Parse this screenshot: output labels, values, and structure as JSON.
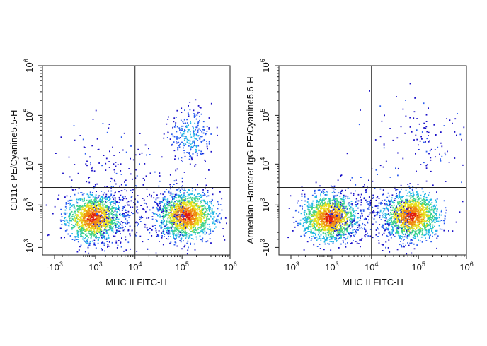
{
  "chart_data": [
    {
      "type": "scatter",
      "subtype": "flow-cytometry-density-plot",
      "xlabel": "MHC II FITC-H",
      "ylabel": "CD11c PE/Cyanine5.5-H",
      "x_scale": "biexponential",
      "y_scale": "biexponential",
      "xlim": [
        -1000,
        1000000
      ],
      "ylim": [
        -1000,
        1000000
      ],
      "x_ticks": [
        {
          "value": -1000,
          "base": "-10",
          "exp": "3"
        },
        {
          "value": 1000,
          "base": "10",
          "exp": "3"
        },
        {
          "value": 10000,
          "base": "10",
          "exp": "4"
        },
        {
          "value": 100000,
          "base": "10",
          "exp": "5"
        },
        {
          "value": 1000000,
          "base": "10",
          "exp": "6"
        }
      ],
      "y_ticks": [
        {
          "value": -1000,
          "base": "-10",
          "exp": "3"
        },
        {
          "value": 1000,
          "base": "10",
          "exp": "3"
        },
        {
          "value": 10000,
          "base": "10",
          "exp": "4"
        },
        {
          "value": 100000,
          "base": "10",
          "exp": "5"
        },
        {
          "value": 1000000,
          "base": "10",
          "exp": "6"
        }
      ],
      "gate": {
        "x": 10000,
        "y": 3000
      },
      "populations": [
        {
          "x": 800,
          "y": 300,
          "density": "high"
        },
        {
          "x": 120000,
          "y": 400,
          "density": "high"
        },
        {
          "x": 150000,
          "y": 40000,
          "density": "low"
        },
        {
          "x": 3000,
          "y": 10000,
          "density": "sparse"
        }
      ],
      "grid": false,
      "legend": "none"
    },
    {
      "type": "scatter",
      "subtype": "flow-cytometry-density-plot",
      "xlabel": "MHC II FITC-H",
      "ylabel": "Armenian Hamster IgG PE/Cyanine5.5-H",
      "x_scale": "biexponential",
      "y_scale": "biexponential",
      "xlim": [
        -1000,
        1000000
      ],
      "ylim": [
        -1000,
        1000000
      ],
      "x_ticks": [
        {
          "value": -1000,
          "base": "-10",
          "exp": "3"
        },
        {
          "value": 1000,
          "base": "10",
          "exp": "3"
        },
        {
          "value": 10000,
          "base": "10",
          "exp": "4"
        },
        {
          "value": 100000,
          "base": "10",
          "exp": "5"
        },
        {
          "value": 1000000,
          "base": "10",
          "exp": "6"
        }
      ],
      "y_ticks": [
        {
          "value": -1000,
          "base": "-10",
          "exp": "3"
        },
        {
          "value": 1000,
          "base": "10",
          "exp": "3"
        },
        {
          "value": 10000,
          "base": "10",
          "exp": "4"
        },
        {
          "value": 100000,
          "base": "10",
          "exp": "5"
        },
        {
          "value": 1000000,
          "base": "10",
          "exp": "6"
        }
      ],
      "gate": {
        "x": 10000,
        "y": 3000
      },
      "populations": [
        {
          "x": 800,
          "y": 300,
          "density": "high"
        },
        {
          "x": 70000,
          "y": 400,
          "density": "high"
        },
        {
          "x": 120000,
          "y": 40000,
          "density": "sparse"
        }
      ],
      "grid": false,
      "legend": "none"
    }
  ],
  "colors": {
    "density_scale": [
      "#1a10c8",
      "#2a5cf0",
      "#1fb6e6",
      "#3cd28a",
      "#e8e020",
      "#f08a10",
      "#e01a10"
    ],
    "axis": "#222222",
    "gate_line": "#222222"
  }
}
